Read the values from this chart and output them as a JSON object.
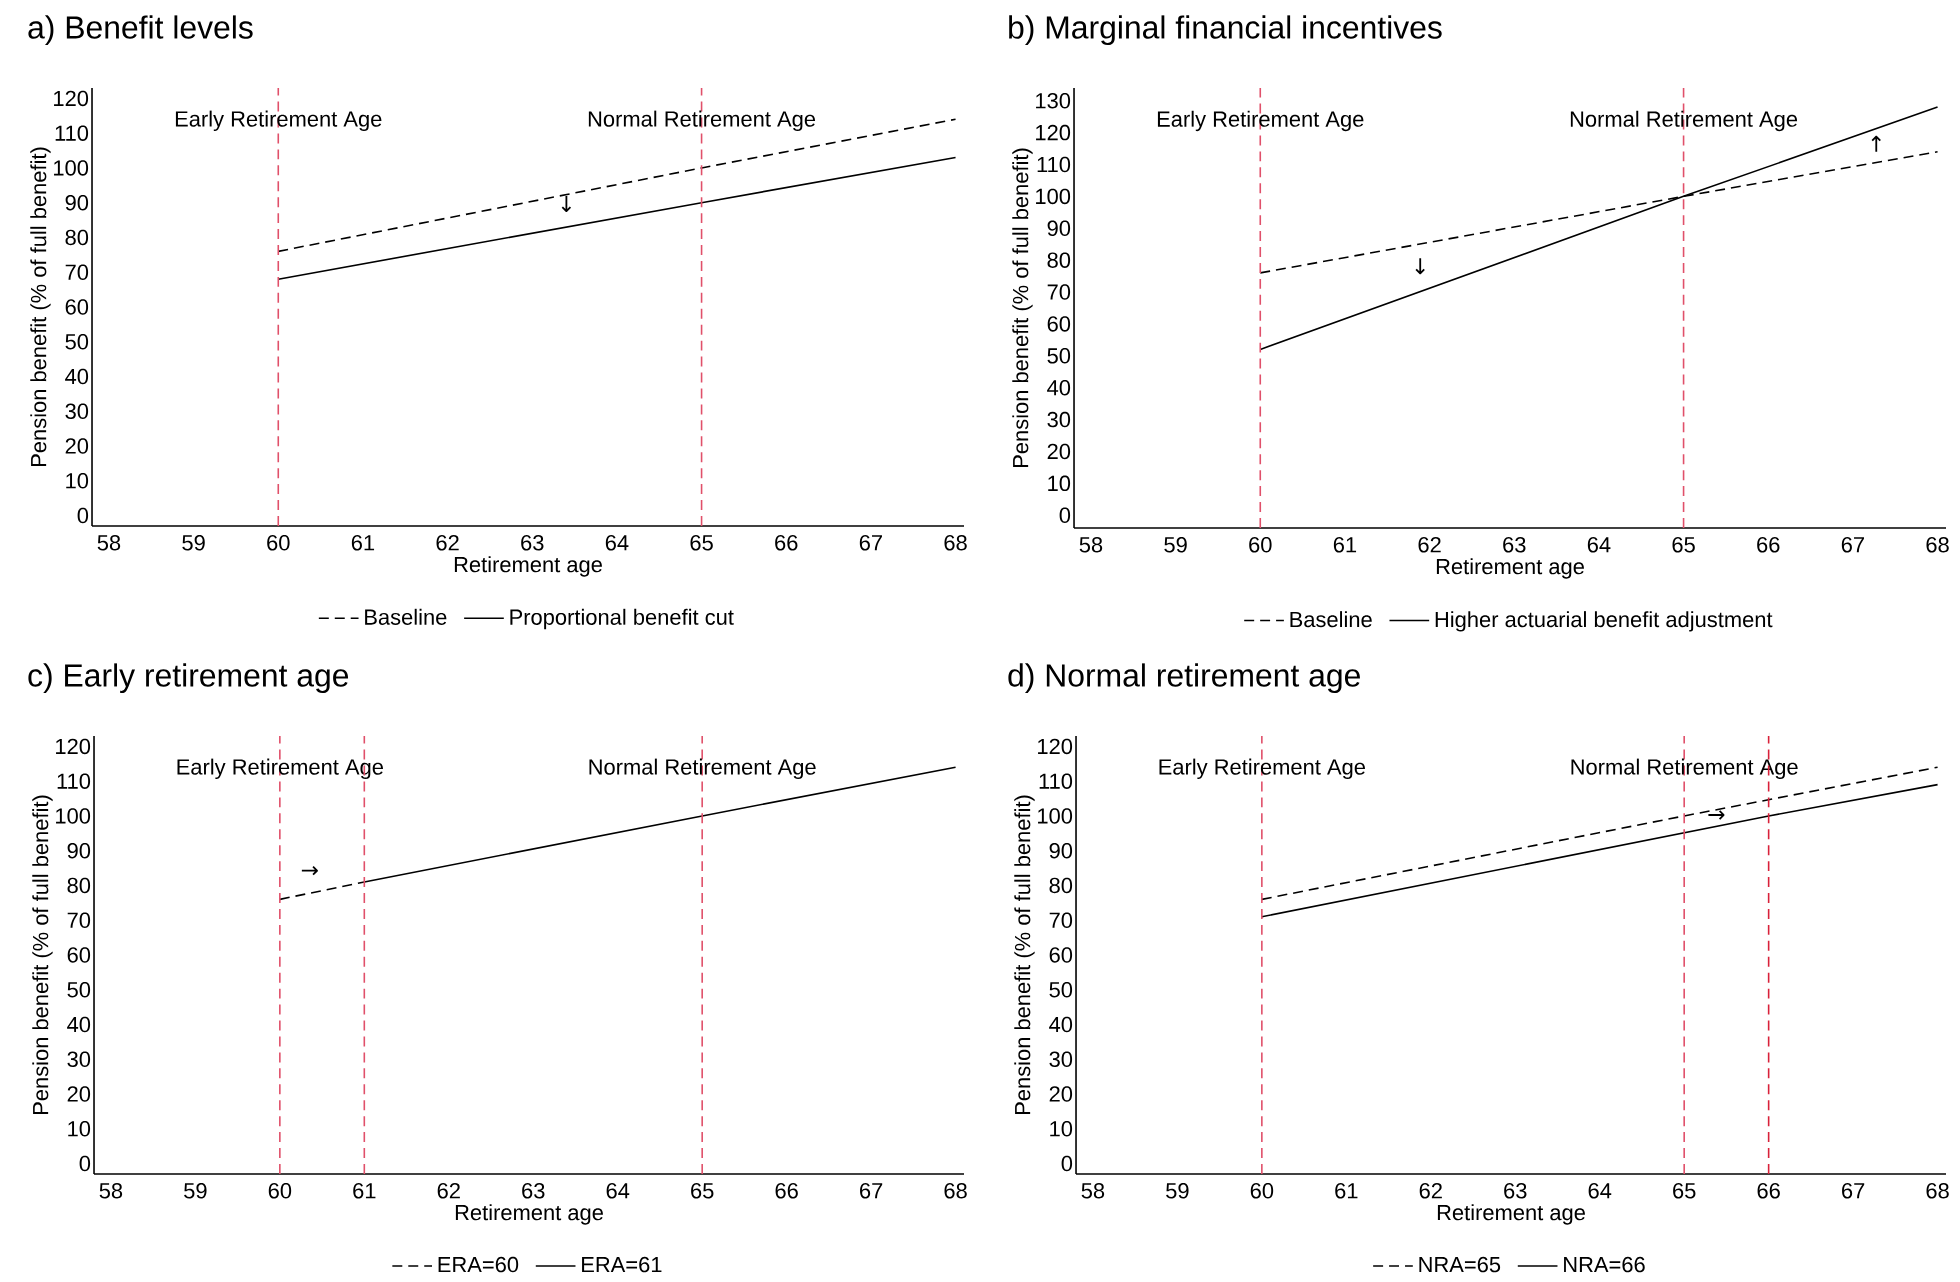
{
  "chart_data": [
    {
      "type": "line",
      "title": "a) Benefit levels",
      "xlabel": "Retirement age",
      "ylabel": "Pension benefit (% of full benefit)",
      "xlim": [
        57.8,
        68.1
      ],
      "xticks": [
        58,
        59,
        60,
        61,
        62,
        63,
        64,
        65,
        66,
        67,
        68
      ],
      "ylim": [
        -3,
        123
      ],
      "yticks": [
        0,
        10,
        20,
        30,
        40,
        50,
        60,
        70,
        80,
        90,
        100,
        110,
        120
      ],
      "legend": "bottom",
      "series": [
        {
          "name": "Baseline",
          "color": "#000000",
          "line_style": "dashed",
          "x": [
            60,
            65,
            68
          ],
          "values": [
            76,
            100,
            114
          ]
        },
        {
          "name": "Proportional benefit cut",
          "color": "#000000",
          "line_style": "solid",
          "x": [
            60,
            65,
            68
          ],
          "values": [
            68,
            90,
            103
          ]
        }
      ],
      "ref_lines": [
        {
          "axis": "x",
          "value": 60,
          "label": "Early Retirement Age",
          "color": "#e0506a",
          "line_style": "dashed"
        },
        {
          "axis": "x",
          "value": 65,
          "label": "Normal Retirement Age",
          "color": "#e0506a",
          "line_style": "dashed"
        }
      ],
      "annotations": [
        "↓"
      ]
    },
    {
      "type": "line",
      "title": "b) Marginal financial incentives",
      "xlabel": "Retirement age",
      "ylabel": "Pension benefit (% of full benefit)",
      "xlim": [
        57.8,
        68.1
      ],
      "xticks": [
        58,
        59,
        60,
        61,
        62,
        63,
        64,
        65,
        66,
        67,
        68
      ],
      "ylim": [
        -4,
        134
      ],
      "yticks": [
        0,
        10,
        20,
        30,
        40,
        50,
        60,
        70,
        80,
        90,
        100,
        110,
        120,
        130
      ],
      "legend": "bottom",
      "series": [
        {
          "name": "Baseline",
          "color": "#000000",
          "line_style": "dashed",
          "x": [
            60,
            65,
            68
          ],
          "values": [
            76,
            100,
            114
          ]
        },
        {
          "name": "Higher actuarial benefit adjustment",
          "color": "#000000",
          "line_style": "solid",
          "x": [
            60,
            65,
            68
          ],
          "values": [
            52,
            100,
            128
          ]
        }
      ],
      "ref_lines": [
        {
          "axis": "x",
          "value": 60,
          "label": "Early Retirement Age",
          "color": "#e0506a",
          "line_style": "dashed"
        },
        {
          "axis": "x",
          "value": 65,
          "label": "Normal Retirement Age",
          "color": "#e0506a",
          "line_style": "dashed"
        }
      ],
      "annotations": [
        "↓",
        "↑"
      ]
    },
    {
      "type": "line",
      "title": "c) Early retirement age",
      "xlabel": "Retirement age",
      "ylabel": "Pension benefit (% of full benefit)",
      "xlim": [
        57.8,
        68.1
      ],
      "xticks": [
        58,
        59,
        60,
        61,
        62,
        63,
        64,
        65,
        66,
        67,
        68
      ],
      "ylim": [
        -3,
        123
      ],
      "yticks": [
        0,
        10,
        20,
        30,
        40,
        50,
        60,
        70,
        80,
        90,
        100,
        110,
        120
      ],
      "legend": "bottom",
      "series": [
        {
          "name": "ERA=60",
          "color": "#000000",
          "line_style": "dashed",
          "x": [
            60,
            61
          ],
          "values": [
            76,
            81
          ]
        },
        {
          "name": "ERA=61",
          "color": "#000000",
          "line_style": "solid",
          "x": [
            61,
            65,
            68
          ],
          "values": [
            81,
            100,
            114
          ]
        }
      ],
      "ref_lines": [
        {
          "axis": "x",
          "value": 60,
          "label": "Early Retirement Age",
          "color": "#e0506a",
          "line_style": "dashed"
        },
        {
          "axis": "x",
          "value": 61,
          "color": "#e0506a",
          "line_style": "dashed"
        },
        {
          "axis": "x",
          "value": 65,
          "label": "Normal Retirement Age",
          "color": "#e0506a",
          "line_style": "dashed"
        }
      ],
      "annotations": [
        "→"
      ]
    },
    {
      "type": "line",
      "title": "d) Normal retirement age",
      "xlabel": "Retirement age",
      "ylabel": "Pension benefit (% of full benefit)",
      "xlim": [
        57.8,
        68.1
      ],
      "xticks": [
        58,
        59,
        60,
        61,
        62,
        63,
        64,
        65,
        66,
        67,
        68
      ],
      "ylim": [
        -3,
        123
      ],
      "yticks": [
        0,
        10,
        20,
        30,
        40,
        50,
        60,
        70,
        80,
        90,
        100,
        110,
        120
      ],
      "legend": "bottom",
      "series": [
        {
          "name": "NRA=65",
          "color": "#000000",
          "line_style": "dashed",
          "x": [
            60,
            65,
            68
          ],
          "values": [
            76,
            100,
            114
          ]
        },
        {
          "name": "NRA=66",
          "color": "#000000",
          "line_style": "solid",
          "x": [
            60,
            66,
            68
          ],
          "values": [
            71,
            100,
            109
          ]
        }
      ],
      "ref_lines": [
        {
          "axis": "x",
          "value": 60,
          "label": "Early Retirement Age",
          "color": "#e0506a",
          "line_style": "dashed"
        },
        {
          "axis": "x",
          "value": 65,
          "label": "Normal Retirement Age",
          "color": "#e0506a",
          "line_style": "dashed"
        },
        {
          "axis": "x",
          "value": 66,
          "color": "#d9213a",
          "line_style": "dashed"
        }
      ],
      "annotations": [
        "→"
      ]
    }
  ]
}
